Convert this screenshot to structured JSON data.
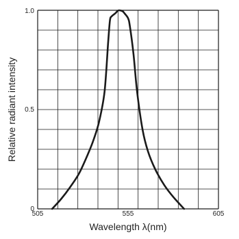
{
  "chart_data": {
    "type": "line",
    "title": "",
    "xlabel": "Wavelength λ(nm)",
    "ylabel": "Relative radiant intensity",
    "xlim": [
      505,
      605
    ],
    "ylim": [
      0,
      1.0
    ],
    "x_ticks": [
      "505",
      "555",
      "605"
    ],
    "y_ticks": [
      "1.0",
      "0.5",
      "0"
    ],
    "grid": true,
    "series": [
      {
        "color": "#1a1a1a",
        "x": [
          513,
          518,
          523,
          528,
          533,
          536,
          539,
          542,
          544,
          545,
          546,
          548,
          549,
          550,
          552,
          553,
          555,
          556,
          558,
          560,
          563,
          566,
          570,
          575,
          580,
          586
        ],
        "y": [
          0.0,
          0.05,
          0.11,
          0.18,
          0.28,
          0.35,
          0.44,
          0.59,
          0.84,
          0.95,
          0.97,
          0.985,
          0.995,
          1.0,
          0.995,
          0.985,
          0.96,
          0.92,
          0.78,
          0.59,
          0.4,
          0.29,
          0.2,
          0.12,
          0.06,
          0.0
        ]
      }
    ]
  }
}
